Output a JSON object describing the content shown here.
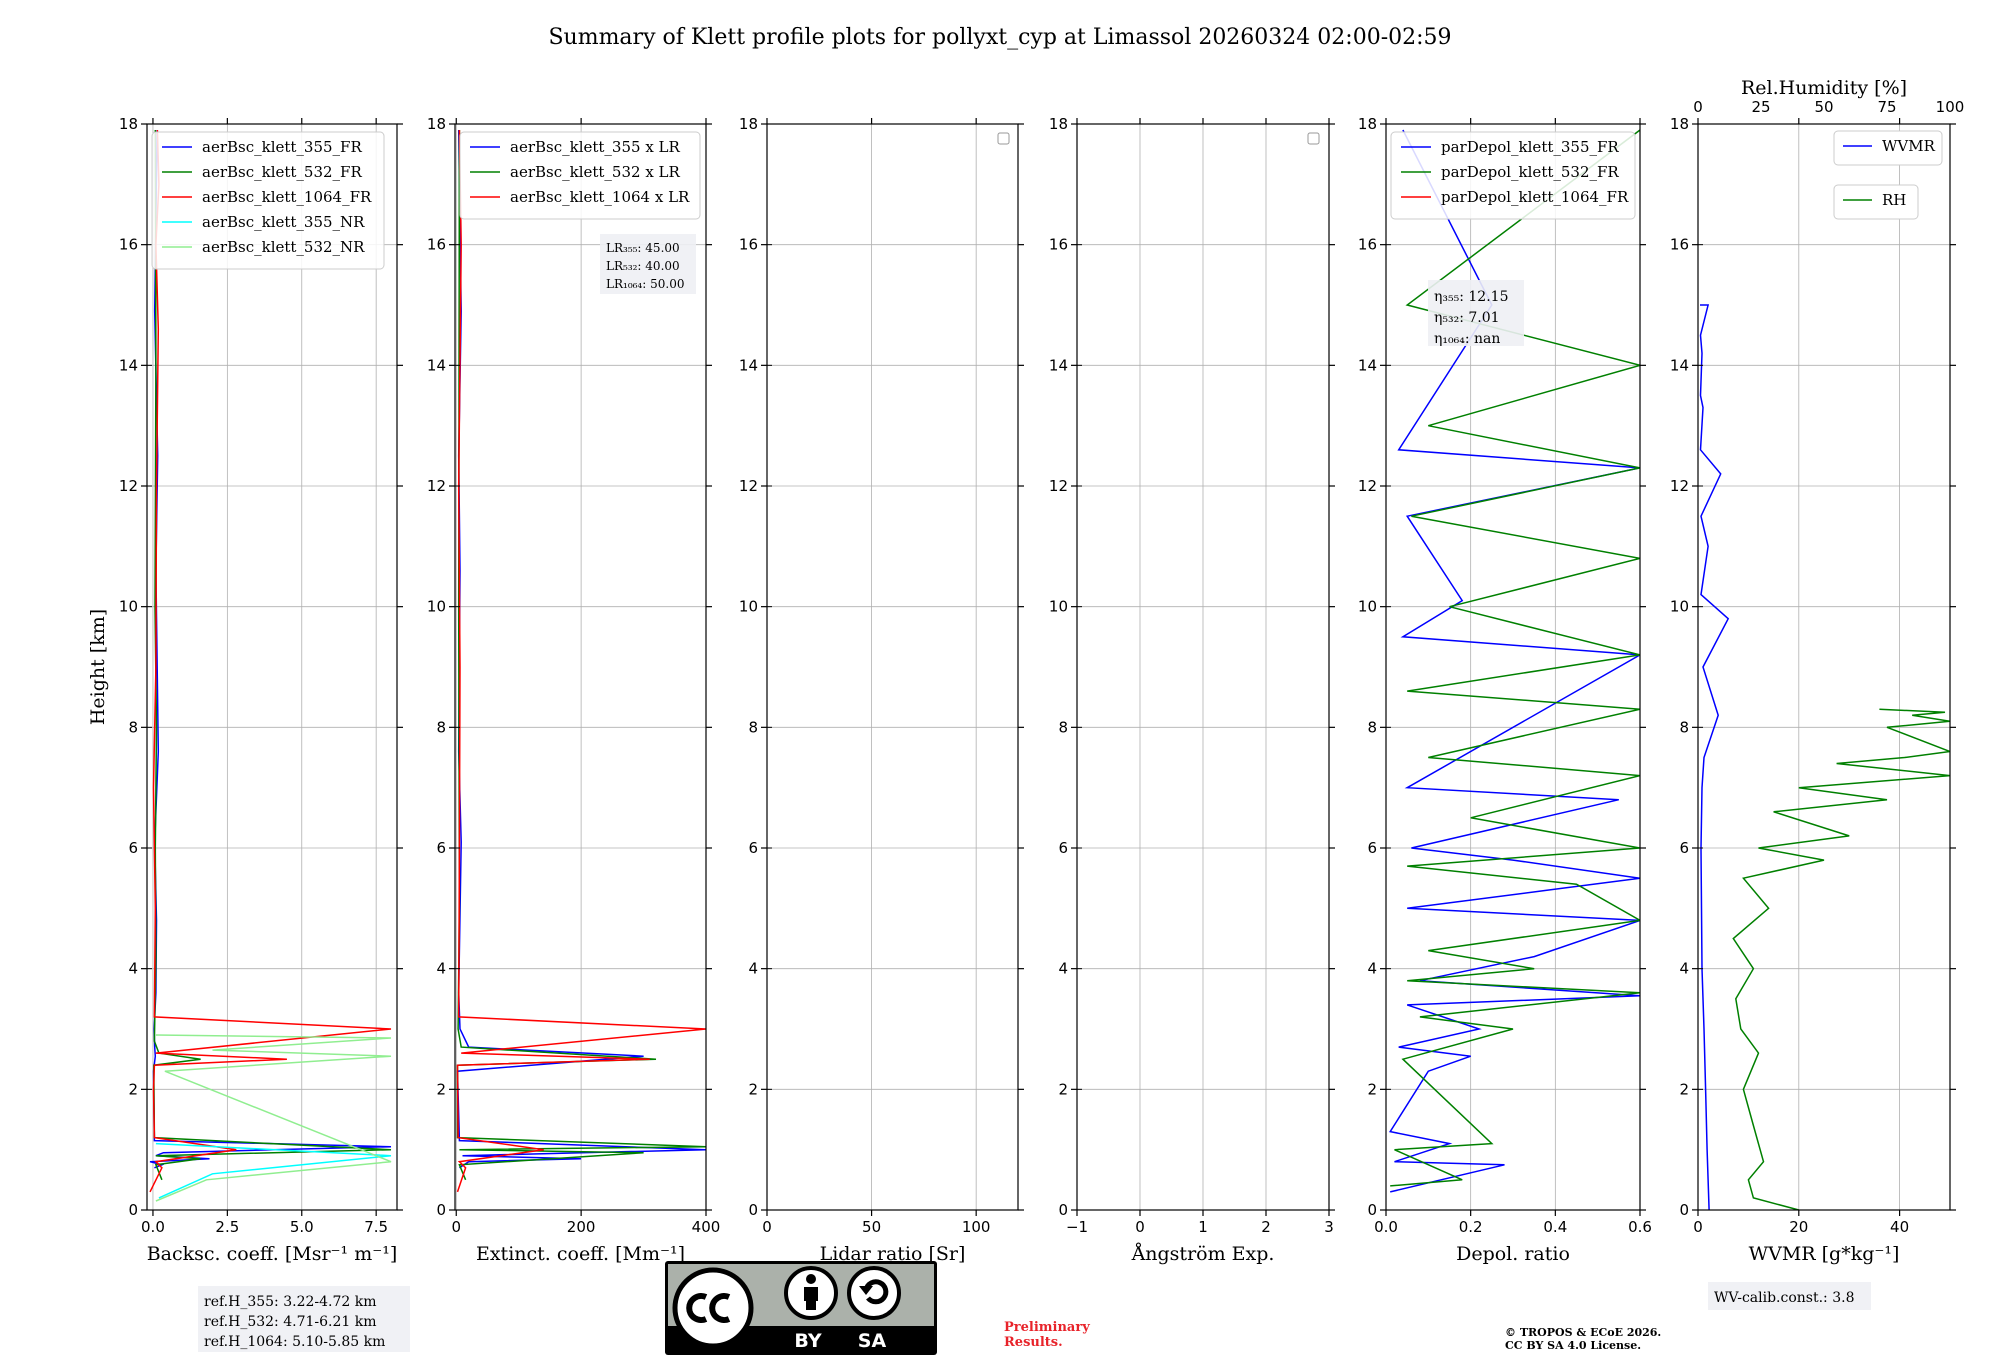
{
  "chart_data": [
    {
      "type": "line",
      "title": "Summary of Klett profile plots for pollyxt_cyp at Limassol 20260324 02:00-02:59",
      "xlabel": "Backsc. coeff. [Msr⁻¹ m⁻¹]",
      "ylabel": "Height [km]",
      "xlim": [
        -0.2,
        8.2
      ],
      "ylim": [
        0,
        18
      ],
      "xticks": [
        "0.0",
        "2.5",
        "5.0",
        "7.5"
      ],
      "xtick_values": [
        0,
        2.5,
        5,
        7.5
      ],
      "yticks": [
        "0",
        "2",
        "4",
        "6",
        "8",
        "10",
        "12",
        "14",
        "16",
        "18"
      ],
      "grid": true,
      "legend": "top-left",
      "series": [
        {
          "name": "aerBsc_klett_355_FR",
          "color": "#0000ff",
          "x": [
            0.05,
            0.3,
            -0.1,
            1.9,
            0.1,
            0.35,
            8.0,
            0.05,
            0.02,
            0.08,
            0.06,
            0.04,
            0.1,
            0.12,
            0.06,
            0.18,
            0.1,
            0.16,
            0.06,
            0.14
          ],
          "y": [
            0.7,
            0.75,
            0.8,
            0.85,
            0.9,
            0.95,
            1.05,
            1.15,
            2.3,
            2.55,
            2.7,
            3.0,
            3.6,
            4.8,
            6.1,
            7.6,
            10.6,
            12.5,
            14.9,
            17.9
          ]
        },
        {
          "name": "aerBsc_klett_532_FR",
          "color": "#008000",
          "x": [
            0.3,
            0.1,
            1.6,
            0.1,
            8.0,
            0.05,
            0.03,
            1.6,
            0.2,
            0.05,
            0.06,
            0.1,
            0.08,
            0.12,
            0.07,
            0.1,
            0.08
          ],
          "y": [
            0.5,
            0.75,
            0.85,
            0.9,
            1.0,
            1.2,
            2.4,
            2.5,
            2.6,
            2.8,
            3.1,
            4.2,
            6.0,
            8.0,
            10.0,
            14.0,
            17.9
          ]
        },
        {
          "name": "aerBsc_klett_1064_FR",
          "color": "#ff0000",
          "x": [
            -0.1,
            0.3,
            0.1,
            2.8,
            0.05,
            0.02,
            0.05,
            4.5,
            0.1,
            8.0,
            0.05,
            0.08,
            0.02,
            0.1,
            0.12,
            0.18,
            0.1,
            0.2,
            0.15
          ],
          "y": [
            0.3,
            0.7,
            0.8,
            1.0,
            1.2,
            2.0,
            2.4,
            2.5,
            2.6,
            3.0,
            3.2,
            5.0,
            7.0,
            9.0,
            12.0,
            14.6,
            16.0,
            17.0,
            17.9
          ]
        },
        {
          "name": "aerBsc_klett_355_NR",
          "color": "#00ffff",
          "x": [
            0.2,
            2.0,
            8.0,
            0.1
          ],
          "y": [
            0.2,
            0.6,
            0.9,
            1.1
          ]
        },
        {
          "name": "aerBsc_klett_532_NR",
          "color": "#90ee90",
          "x": [
            0.1,
            1.8,
            8.0,
            0.4,
            8.0,
            2.0,
            8.0,
            0.1
          ],
          "y": [
            0.15,
            0.5,
            0.8,
            2.3,
            2.55,
            2.65,
            2.85,
            2.9
          ]
        }
      ],
      "ref_heights": [
        "ref.H_355: 3.22-4.72 km",
        "ref.H_532: 4.71-6.21 km",
        "ref.H_1064: 5.10-5.85 km"
      ]
    },
    {
      "type": "line",
      "xlabel": "Extinct. coeff. [Mm⁻¹]",
      "xlim": [
        -2,
        400
      ],
      "ylim": [
        0,
        18
      ],
      "xticks": [
        "0",
        "200",
        "400"
      ],
      "xtick_values": [
        0,
        200,
        400
      ],
      "yticks": [
        "0",
        "2",
        "4",
        "6",
        "8",
        "10",
        "12",
        "14",
        "16",
        "18"
      ],
      "grid": true,
      "legend": "top-left",
      "series": [
        {
          "name": "aerBsc_klett_355 x LR",
          "color": "#0000ff",
          "x": [
            5,
            20,
            200,
            10,
            400,
            5,
            2,
            300,
            20,
            6,
            4,
            8,
            4,
            6,
            4,
            8,
            4
          ],
          "y": [
            0.7,
            0.8,
            0.85,
            0.9,
            1.0,
            1.15,
            2.3,
            2.55,
            2.7,
            3.0,
            3.6,
            6.1,
            7.6,
            10.6,
            12.5,
            14.9,
            17.9
          ]
        },
        {
          "name": "aerBsc_klett_532 x LR",
          "color": "#008000",
          "x": [
            15,
            5,
            300,
            5,
            400,
            2,
            2,
            320,
            8,
            3,
            5,
            4,
            5
          ],
          "y": [
            0.5,
            0.75,
            0.95,
            1.0,
            1.05,
            1.2,
            2.4,
            2.5,
            2.7,
            3.0,
            5.0,
            10.0,
            17.9
          ]
        },
        {
          "name": "aerBsc_klett_1064 x LR",
          "color": "#ff0000",
          "x": [
            2,
            15,
            5,
            140,
            3,
            2,
            310,
            8,
            400,
            4,
            5,
            6,
            4,
            8,
            5
          ],
          "y": [
            0.3,
            0.7,
            0.8,
            1.0,
            1.2,
            2.4,
            2.5,
            2.6,
            3.0,
            3.2,
            6.0,
            9.0,
            12.0,
            16.0,
            17.9
          ]
        }
      ],
      "annotations": [
        "LR₃₅₅: 45.00",
        "LR₅₃₂: 40.00",
        "LR₁₀₆₄: 50.00"
      ]
    },
    {
      "type": "line",
      "xlabel": "Lidar ratio [Sr]",
      "xlim": [
        0,
        120
      ],
      "ylim": [
        0,
        18
      ],
      "xticks": [
        "0",
        "50",
        "100"
      ],
      "xtick_values": [
        0,
        50,
        100
      ],
      "yticks": [
        "0",
        "2",
        "4",
        "6",
        "8",
        "10",
        "12",
        "14",
        "16",
        "18"
      ],
      "grid": true,
      "series": []
    },
    {
      "type": "line",
      "xlabel": "Ångström Exp.",
      "xlim": [
        -1,
        3
      ],
      "ylim": [
        0,
        18
      ],
      "xticks": [
        "−1",
        "0",
        "1",
        "2",
        "3"
      ],
      "xtick_values": [
        -1,
        0,
        1,
        2,
        3
      ],
      "yticks": [
        "0",
        "2",
        "4",
        "6",
        "8",
        "10",
        "12",
        "14",
        "16",
        "18"
      ],
      "grid": true,
      "series": []
    },
    {
      "type": "line",
      "xlabel": "Depol. ratio",
      "xlim": [
        0,
        0.6
      ],
      "ylim": [
        0,
        18
      ],
      "xticks": [
        "0.0",
        "0.2",
        "0.4",
        "0.6"
      ],
      "xtick_values": [
        0,
        0.2,
        0.4,
        0.6
      ],
      "yticks": [
        "0",
        "2",
        "4",
        "6",
        "8",
        "10",
        "12",
        "14",
        "16",
        "18"
      ],
      "grid": true,
      "legend": "top-left",
      "series": [
        {
          "name": "parDepol_klett_355_FR",
          "color": "#0000ff",
          "x": [
            0.01,
            0.28,
            0.02,
            0.15,
            0.01,
            0.1,
            0.2,
            0.03,
            0.22,
            0.05,
            0.6,
            0.08,
            0.35,
            0.6,
            0.05,
            0.6,
            0.3,
            0.06,
            0.55,
            0.05,
            0.6,
            0.04,
            0.18,
            0.05,
            0.6,
            0.03,
            0.25,
            0.04
          ],
          "y": [
            0.3,
            0.75,
            0.8,
            1.1,
            1.3,
            2.3,
            2.55,
            2.7,
            3.0,
            3.4,
            3.55,
            3.8,
            4.2,
            4.8,
            5.0,
            5.5,
            5.8,
            6.0,
            6.8,
            7.0,
            9.2,
            9.5,
            10.1,
            11.5,
            12.3,
            12.6,
            15.0,
            17.9
          ]
        },
        {
          "name": "parDepol_klett_532_FR",
          "color": "#008000",
          "x": [
            0.01,
            0.18,
            0.02,
            0.25,
            0.04,
            0.3,
            0.08,
            0.6,
            0.05,
            0.35,
            0.1,
            0.6,
            0.45,
            0.05,
            0.6,
            0.2,
            0.6,
            0.1,
            0.6,
            0.05,
            0.6,
            0.15,
            0.6,
            0.06,
            0.6,
            0.1,
            0.6,
            0.05,
            0.6
          ],
          "y": [
            0.4,
            0.5,
            1.0,
            1.1,
            2.5,
            3.0,
            3.2,
            3.6,
            3.8,
            4.0,
            4.3,
            4.8,
            5.4,
            5.7,
            6.0,
            6.5,
            7.2,
            7.5,
            8.3,
            8.6,
            9.2,
            10.0,
            10.8,
            11.5,
            12.3,
            13.0,
            14.0,
            15.0,
            17.9
          ]
        },
        {
          "name": "parDepol_klett_1064_FR",
          "color": "#ff0000",
          "x": [],
          "y": []
        }
      ],
      "annotations": [
        "η₃₅₅: 12.15",
        "η₅₃₂: 7.01",
        "η₁₀₆₄: nan"
      ]
    },
    {
      "type": "line",
      "xlabel": "WVMR [g*kg⁻¹]",
      "x2label": "Rel.Humidity [%]",
      "xlim": [
        0,
        50
      ],
      "x2lim": [
        0,
        100
      ],
      "ylim": [
        0,
        18
      ],
      "xticks": [
        "0",
        "20",
        "40"
      ],
      "xtick_values": [
        0,
        20,
        40
      ],
      "x2ticks": [
        "0",
        "25",
        "50",
        "75",
        "100"
      ],
      "x2tick_values": [
        0,
        25,
        50,
        75,
        100
      ],
      "yticks": [
        "0",
        "2",
        "4",
        "6",
        "8",
        "10",
        "12",
        "14",
        "16",
        "18"
      ],
      "grid": true,
      "series": [
        {
          "name": "WVMR",
          "color": "#0000ff",
          "x": [
            2.2,
            1.8,
            1.5,
            1.2,
            1.0,
            0.8,
            0.7,
            0.6,
            0.8,
            1.2,
            4.0,
            1.0,
            6.0,
            0.6,
            2.0,
            0.6,
            4.5,
            0.5,
            1.0,
            0.5,
            0.8,
            0.5,
            2.0,
            0.4
          ],
          "y": [
            0.0,
            1.0,
            2.0,
            3.0,
            3.5,
            4.0,
            5.0,
            6.0,
            7.0,
            7.5,
            8.2,
            9.0,
            9.8,
            10.2,
            11.0,
            11.5,
            12.2,
            12.6,
            13.3,
            13.5,
            14.2,
            14.5,
            15.0,
            15.0
          ]
        },
        {
          "name": "RH",
          "color": "#008000",
          "x_rh": [
            40,
            22,
            20,
            26,
            22,
            18,
            24,
            17,
            15,
            22,
            14,
            28,
            18,
            50,
            24,
            60,
            30,
            75,
            40,
            100,
            55,
            82,
            100,
            75,
            100,
            85,
            98,
            72
          ],
          "y": [
            0.0,
            0.2,
            0.5,
            0.8,
            1.4,
            2.0,
            2.6,
            3.0,
            3.5,
            4.0,
            4.5,
            5.0,
            5.5,
            5.8,
            6.0,
            6.2,
            6.6,
            6.8,
            7.0,
            7.2,
            7.4,
            7.5,
            7.6,
            8.0,
            8.1,
            8.2,
            8.25,
            8.3
          ]
        }
      ],
      "annotations": [
        "WV-calib.const.: 3.8"
      ]
    }
  ],
  "footer": {
    "cc_by": "BY",
    "cc_sa": "SA",
    "preliminary_line1": "Preliminary",
    "preliminary_line2": "Results.",
    "copyright_line1": "© TROPOS & ECoE 2026.",
    "copyright_line2": "CC BY SA 4.0 License."
  }
}
